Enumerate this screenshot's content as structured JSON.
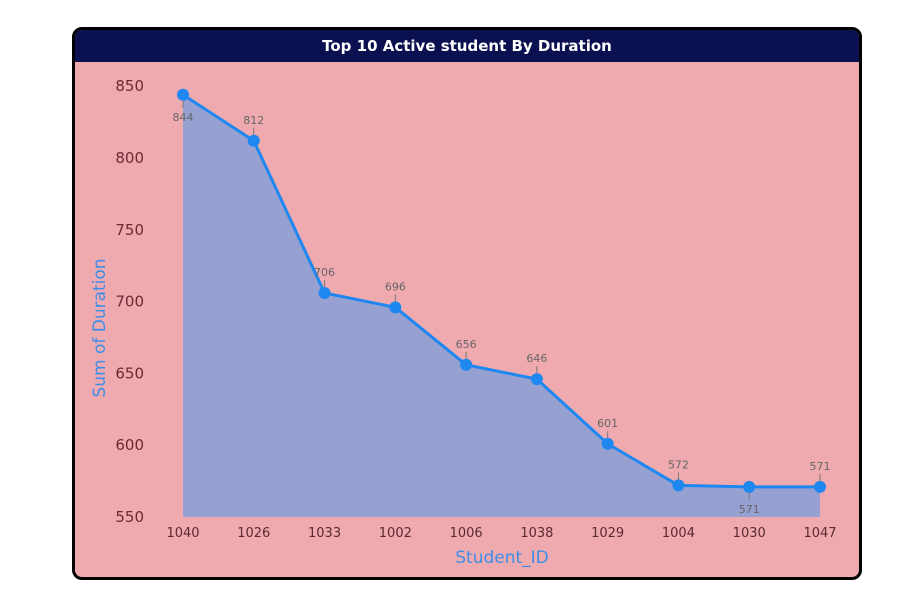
{
  "chart_data": {
    "type": "area",
    "title": "Top 10 Active student By Duration",
    "xlabel": "Student_ID",
    "ylabel": "Sum of Duration",
    "categories": [
      "1040",
      "1026",
      "1033",
      "1002",
      "1006",
      "1038",
      "1029",
      "1004",
      "1030",
      "1047"
    ],
    "series": [
      {
        "values": [
          844,
          812,
          706,
          696,
          656,
          646,
          601,
          572,
          571,
          571
        ]
      }
    ],
    "data_labels": [
      "844",
      "812",
      "706",
      "696",
      "656",
      "646",
      "601",
      "572",
      "571",
      "571"
    ],
    "label_below": [
      true,
      false,
      false,
      false,
      false,
      false,
      false,
      false,
      true,
      false
    ],
    "yticks": [
      "550",
      "600",
      "650",
      "700",
      "750",
      "800",
      "850"
    ],
    "ylim": [
      550,
      855
    ],
    "grid": false,
    "colors": {
      "background": "#efaab0",
      "title_bar": "#0b1150",
      "line": "#1f87f0",
      "area": "#96a1d2",
      "border": "#000000"
    }
  }
}
